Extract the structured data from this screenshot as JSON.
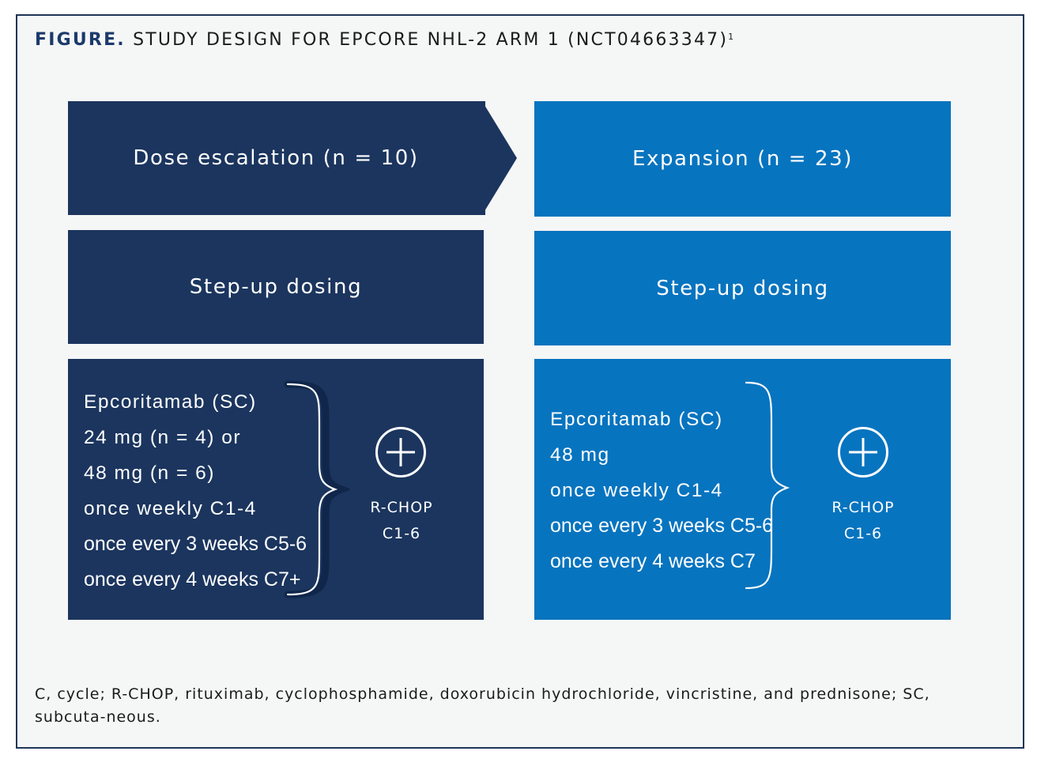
{
  "figure": {
    "label": "FIGURE.",
    "title": "STUDY DESIGN FOR EPCORE NHL-2 ARM 1 (NCT04663347)",
    "superscript": "1"
  },
  "left_arm": {
    "header": "Dose escalation (n = 10)",
    "dosing": "Step-up dosing",
    "regimen": [
      "Epcoritamab (SC)",
      "24 mg (n = 4) or",
      "48 mg (n = 6)",
      "once weekly C1-4",
      "once every 3 weeks C5-6",
      "once every 4 weeks C7+"
    ],
    "combo_line1": "R-CHOP",
    "combo_line2": "C1-6"
  },
  "right_arm": {
    "header": "Expansion (n = 23)",
    "dosing": "Step-up dosing",
    "regimen": [
      "Epcoritamab (SC)",
      "48 mg",
      "once weekly C1-4",
      "once every 3 weeks C5-6",
      "once every 4 weeks C7"
    ],
    "combo_line1": "R-CHOP",
    "combo_line2": "C1-6"
  },
  "footnote": "C, cycle; R-CHOP, rituximab, cyclophosphamide, doxorubicin hydrochloride, vincristine, and prednisone; SC, subcuta-neous.",
  "colors": {
    "navy": "#1b355e",
    "blue": "#0774bf",
    "frame": "#1d3557",
    "background": "#f5f6f6"
  }
}
